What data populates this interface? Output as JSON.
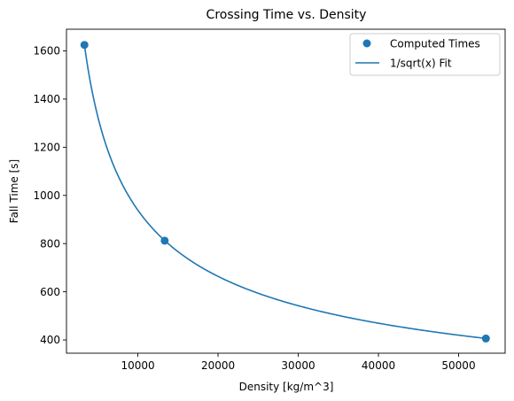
{
  "chart_data": {
    "type": "scatter",
    "title": "Crossing Time vs. Density",
    "xlabel": "Density [kg/m^3]",
    "ylabel": "Fall Time [s]",
    "xlim": [
      1100,
      55800
    ],
    "ylim": [
      345,
      1690
    ],
    "xticks": [
      10000,
      20000,
      30000,
      40000,
      50000
    ],
    "yticks": [
      400,
      600,
      800,
      1000,
      1200,
      1400,
      1600
    ],
    "grid": false,
    "legend_position": "top-right",
    "series": [
      {
        "name": "Computed Times",
        "kind": "scatter",
        "color": "#1f77b4",
        "x": [
          3340,
          13350,
          53400
        ],
        "y": [
          1625,
          812,
          406
        ]
      },
      {
        "name": "1/sqrt(x) Fit",
        "kind": "line",
        "color": "#1f77b4",
        "fit": "1/sqrt(x)",
        "coefficient": 93900,
        "x_range": [
          3340,
          53400
        ]
      }
    ]
  }
}
